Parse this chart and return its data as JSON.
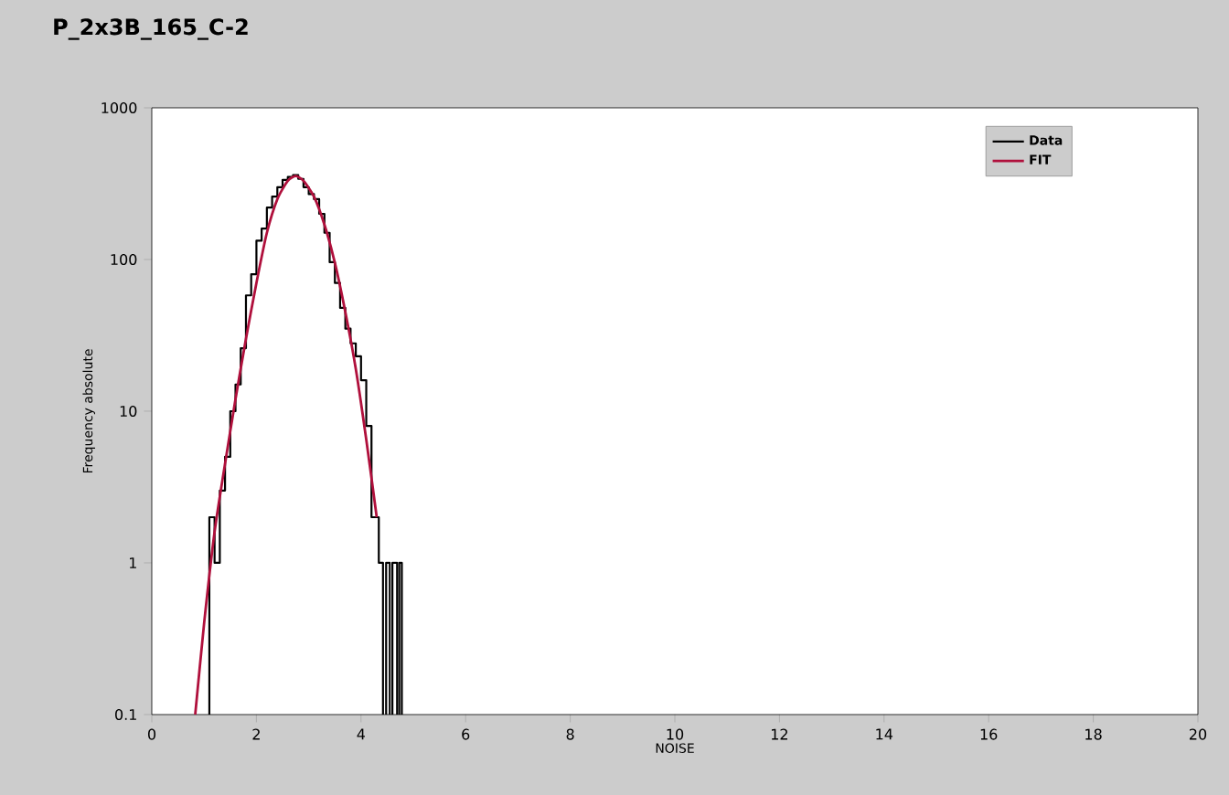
{
  "chart_data": {
    "type": "histogram",
    "title": "P_2x3B_165_C-2",
    "xlabel": "NOISE",
    "ylabel": "Frequency absolute",
    "log": "y",
    "xlim": [
      0,
      20
    ],
    "ylim": [
      0.1,
      1000
    ],
    "xticks": [
      0,
      2,
      4,
      6,
      8,
      10,
      12,
      14,
      16,
      18,
      20
    ],
    "yticks": [
      0.1,
      1,
      10,
      100,
      1000
    ],
    "legend": "top right",
    "grid": false,
    "series": [
      {
        "name": "Data",
        "type": "histogram",
        "color": "#000000",
        "bins": [
          1.1,
          1.2,
          1.3,
          1.4,
          1.5,
          1.6,
          1.7,
          1.8,
          1.9,
          2.0,
          2.1,
          2.2,
          2.3,
          2.4,
          2.5,
          2.6,
          2.7,
          2.8,
          2.9,
          3.0,
          3.1,
          3.2,
          3.3,
          3.4,
          3.5,
          3.6,
          3.7,
          3.8,
          3.9,
          4.0,
          4.1,
          4.2,
          4.34,
          4.42,
          4.48,
          4.55,
          4.6,
          4.69,
          4.73,
          4.78
        ],
        "values": [
          2,
          1,
          3,
          5,
          10,
          15,
          26,
          58,
          80,
          133,
          160,
          220,
          260,
          300,
          335,
          350,
          360,
          340,
          300,
          270,
          250,
          200,
          150,
          96,
          70,
          48,
          35,
          28,
          23,
          16,
          8,
          2,
          1,
          null,
          1,
          null,
          1,
          null,
          1
        ]
      },
      {
        "name": "FIT",
        "type": "line",
        "color": "#b0103c",
        "x": [
          0.83,
          1.0,
          1.2,
          1.4,
          1.6,
          1.8,
          2.0,
          2.2,
          2.4,
          2.6,
          2.75,
          2.9,
          3.1,
          3.3,
          3.5,
          3.7,
          3.9,
          4.1,
          4.3
        ],
        "values": [
          0.1,
          0.4,
          1.6,
          4.5,
          12,
          30,
          70,
          150,
          250,
          330,
          355,
          330,
          260,
          170,
          95,
          45,
          19,
          6.5,
          2.0
        ]
      }
    ]
  }
}
